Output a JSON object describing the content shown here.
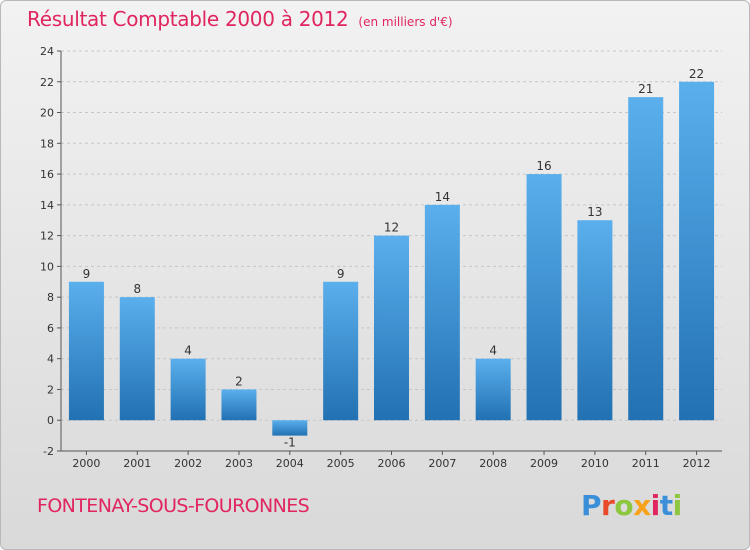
{
  "title": {
    "main": "Résultat Comptable 2000 à 2012",
    "unit": "(en milliers d'€)"
  },
  "footer": {
    "city": "FONTENAY-SOUS-FOURONNES",
    "logo_text": "Proxiti",
    "logo_colors": [
      "#3a8fd8",
      "#e94a2a",
      "#8dc63f",
      "#f7a21b",
      "#e0255f",
      "#3a8fd8",
      "#8dc63f"
    ]
  },
  "colors": {
    "title": "#e0255f",
    "bar_top": "#5aafec",
    "bar_bottom": "#2271b3",
    "grid": "#c6c6c6",
    "axis": "#555555"
  },
  "chart_data": {
    "type": "bar",
    "categories": [
      "2000",
      "2001",
      "2002",
      "2003",
      "2004",
      "2005",
      "2006",
      "2007",
      "2008",
      "2009",
      "2010",
      "2011",
      "2012"
    ],
    "values": [
      9,
      8,
      4,
      2,
      -1,
      9,
      12,
      14,
      4,
      16,
      13,
      21,
      22
    ],
    "ylim": [
      -2,
      24
    ],
    "yticks": [
      -2,
      0,
      2,
      4,
      6,
      8,
      10,
      12,
      14,
      16,
      18,
      20,
      22,
      24
    ],
    "grid": true,
    "show_data_labels": true
  }
}
